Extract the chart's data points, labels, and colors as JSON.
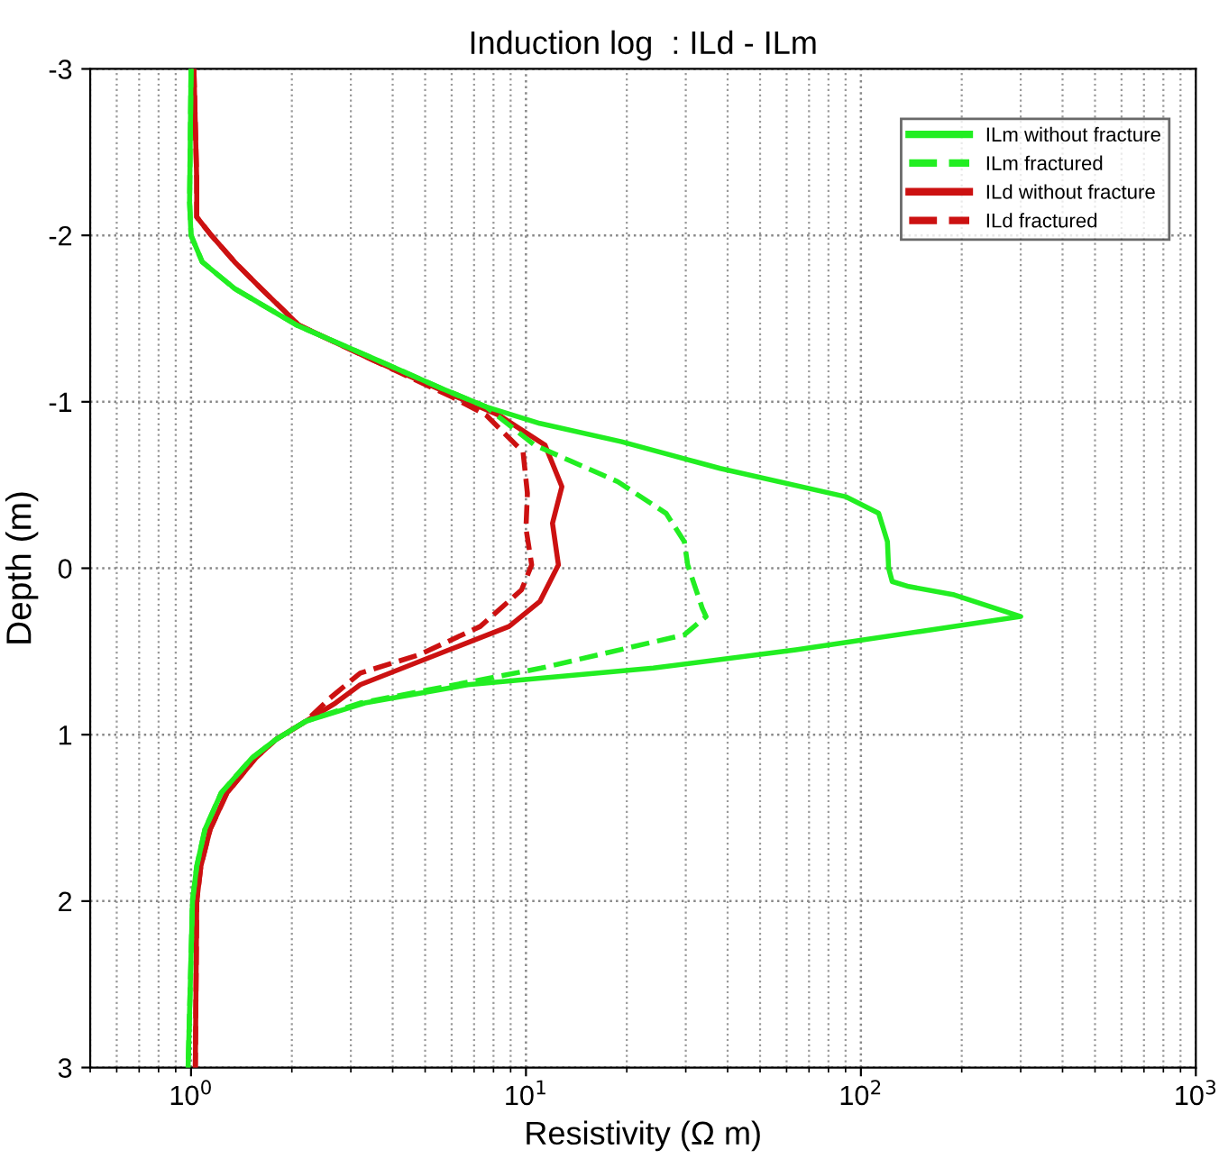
{
  "chart_data": {
    "type": "line",
    "title": "Induction log  : ILd - ILm",
    "xlabel": "Resistivity (Ω m)",
    "ylabel": "Depth (m)",
    "log": "x",
    "xlim": [
      0.5,
      1000
    ],
    "ylim": [
      3,
      -3
    ],
    "xticks": [
      {
        "value": 1,
        "label": "10$^{0}$"
      },
      {
        "value": 10,
        "label": "10$^{1}$"
      },
      {
        "value": 100,
        "label": "10$^{2}$"
      },
      {
        "value": 1000,
        "label": "10$^{3}$"
      }
    ],
    "yticks": [
      -3,
      -2,
      -1,
      0,
      1,
      2,
      3
    ],
    "grid": true,
    "legend": "top right",
    "series": [
      {
        "name": "ILm without fracture",
        "color": "#22ee22",
        "line_style": "solid",
        "x": [
          1.0,
          0.99,
          1.0,
          1.08,
          1.35,
          2.07,
          3.6,
          5.6,
          7.6,
          11,
          19.3,
          38,
          90,
          113,
          120,
          121,
          124,
          139,
          190,
          300,
          150,
          64,
          24,
          6.7,
          3.3,
          2.2,
          1.79,
          1.52,
          1.23,
          1.1,
          1.04,
          1.01,
          0.98
        ],
        "values": [
          -3,
          -2.2,
          -2.0,
          -1.84,
          -1.68,
          -1.46,
          -1.25,
          -1.08,
          -0.97,
          -0.87,
          -0.76,
          -0.6,
          -0.43,
          -0.33,
          -0.16,
          0,
          0.08,
          0.11,
          0.16,
          0.29,
          0.38,
          0.49,
          0.6,
          0.7,
          0.81,
          0.92,
          1.03,
          1.14,
          1.35,
          1.57,
          1.79,
          2.0,
          3
        ]
      },
      {
        "name": "ILm fractured",
        "color": "#22ee22",
        "line_style": "dashed",
        "x": [
          1.0,
          0.99,
          1.0,
          1.08,
          1.35,
          2.07,
          3.6,
          5.6,
          7.6,
          10.6,
          18.8,
          26.2,
          29.7,
          30.4,
          33.6,
          34.5,
          29.7,
          11.1,
          3.2,
          2.2,
          1.79,
          1.52,
          1.23,
          1.1,
          1.04,
          1.01,
          0.98
        ],
        "values": [
          -3,
          -2.2,
          -2.0,
          -1.84,
          -1.68,
          -1.46,
          -1.25,
          -1.08,
          -0.97,
          -0.74,
          -0.52,
          -0.33,
          -0.16,
          -0.02,
          0.24,
          0.29,
          0.4,
          0.6,
          0.81,
          0.92,
          1.03,
          1.14,
          1.35,
          1.57,
          1.79,
          2.0,
          3
        ]
      },
      {
        "name": "ILd without fracture",
        "color": "#cc1111",
        "line_style": "solid",
        "x": [
          1.02,
          1.04,
          1.04,
          1.15,
          1.35,
          1.62,
          2.1,
          3.5,
          6.2,
          8.3,
          11.4,
          12.8,
          12.0,
          12.5,
          11.0,
          8.9,
          5.9,
          3.2,
          2.7,
          2.2,
          1.79,
          1.56,
          1.28,
          1.14,
          1.07,
          1.04,
          1.03
        ],
        "values": [
          -3,
          -2.33,
          -2.11,
          -2.0,
          -1.84,
          -1.68,
          -1.46,
          -1.25,
          -1.03,
          -0.92,
          -0.74,
          -0.49,
          -0.27,
          -0.02,
          0.2,
          0.35,
          0.49,
          0.7,
          0.81,
          0.92,
          1.03,
          1.14,
          1.35,
          1.57,
          1.79,
          2.0,
          3
        ]
      },
      {
        "name": "ILd fractured",
        "color": "#cc1111",
        "line_style": "dashed",
        "x": [
          1.02,
          1.04,
          1.04,
          1.15,
          1.35,
          1.62,
          2.1,
          3.5,
          6.0,
          7.6,
          9.8,
          10.1,
          10.0,
          10.4,
          9.7,
          7.3,
          4.8,
          3.2,
          2.6,
          2.2,
          1.79,
          1.56,
          1.28,
          1.14,
          1.07,
          1.04,
          1.03
        ],
        "values": [
          -3,
          -2.33,
          -2.11,
          -2.0,
          -1.84,
          -1.68,
          -1.46,
          -1.25,
          -1.03,
          -0.92,
          -0.7,
          -0.45,
          -0.24,
          -0.02,
          0.13,
          0.35,
          0.52,
          0.63,
          0.78,
          0.92,
          1.03,
          1.14,
          1.35,
          1.57,
          1.79,
          2.0,
          3
        ]
      }
    ]
  }
}
